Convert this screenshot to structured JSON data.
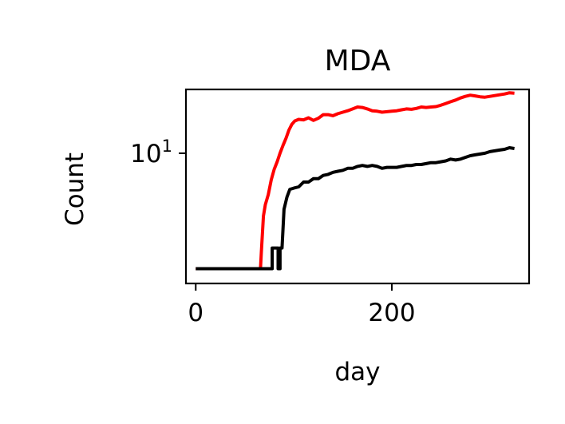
{
  "chart_data": {
    "type": "line",
    "title": "MDA",
    "xlabel": "day",
    "ylabel": "Count",
    "yscale": "log",
    "xlim": [
      -10,
      340
    ],
    "ylim": [
      2.0,
      22.0
    ],
    "x_ticks": [
      0,
      200
    ],
    "x_tick_labels": [
      "0",
      "200"
    ],
    "y_ticks": [
      10
    ],
    "y_tick_labels": [
      {
        "base": "10",
        "exp": "1"
      }
    ],
    "grid": false,
    "legend": "none",
    "series": [
      {
        "color": "#ff0000",
        "points": [
          [
            0,
            2.4
          ],
          [
            66,
            2.4
          ],
          [
            67,
            3.0
          ],
          [
            69,
            4.6
          ],
          [
            71,
            5.3
          ],
          [
            74,
            6.0
          ],
          [
            77,
            7.2
          ],
          [
            80,
            8.2
          ],
          [
            83,
            9.0
          ],
          [
            86,
            10.0
          ],
          [
            89,
            11.0
          ],
          [
            92,
            12.0
          ],
          [
            95,
            13.3
          ],
          [
            98,
            14.3
          ],
          [
            101,
            14.9
          ],
          [
            105,
            15.2
          ],
          [
            110,
            15.1
          ],
          [
            115,
            15.5
          ],
          [
            120,
            15.0
          ],
          [
            125,
            15.4
          ],
          [
            130,
            16.1
          ],
          [
            135,
            16.1
          ],
          [
            140,
            15.9
          ],
          [
            145,
            16.3
          ],
          [
            150,
            16.6
          ],
          [
            155,
            16.9
          ],
          [
            160,
            17.3
          ],
          [
            165,
            17.7
          ],
          [
            170,
            17.6
          ],
          [
            175,
            17.3
          ],
          [
            180,
            16.9
          ],
          [
            185,
            16.8
          ],
          [
            190,
            16.6
          ],
          [
            195,
            16.7
          ],
          [
            200,
            16.8
          ],
          [
            205,
            16.9
          ],
          [
            210,
            17.1
          ],
          [
            215,
            17.3
          ],
          [
            220,
            17.2
          ],
          [
            225,
            17.4
          ],
          [
            230,
            17.7
          ],
          [
            235,
            17.6
          ],
          [
            240,
            17.7
          ],
          [
            245,
            17.8
          ],
          [
            250,
            18.1
          ],
          [
            255,
            18.5
          ],
          [
            260,
            18.9
          ],
          [
            265,
            19.3
          ],
          [
            270,
            19.8
          ],
          [
            275,
            20.2
          ],
          [
            280,
            20.5
          ],
          [
            285,
            20.3
          ],
          [
            290,
            20.1
          ],
          [
            295,
            20.0
          ],
          [
            300,
            20.2
          ],
          [
            305,
            20.4
          ],
          [
            310,
            20.6
          ],
          [
            315,
            20.8
          ],
          [
            320,
            21.1
          ],
          [
            325,
            21.0
          ]
        ]
      },
      {
        "color": "#000000",
        "points": [
          [
            0,
            2.4
          ],
          [
            78,
            2.4
          ],
          [
            78,
            3.1
          ],
          [
            84,
            3.1
          ],
          [
            84,
            2.4
          ],
          [
            86,
            2.4
          ],
          [
            86,
            3.1
          ],
          [
            88,
            3.1
          ],
          [
            90,
            5.0
          ],
          [
            93,
            5.8
          ],
          [
            96,
            6.4
          ],
          [
            100,
            6.5
          ],
          [
            105,
            6.6
          ],
          [
            110,
            7.0
          ],
          [
            115,
            7.0
          ],
          [
            120,
            7.3
          ],
          [
            125,
            7.3
          ],
          [
            130,
            7.6
          ],
          [
            135,
            7.7
          ],
          [
            140,
            7.9
          ],
          [
            145,
            8.0
          ],
          [
            150,
            8.1
          ],
          [
            155,
            8.3
          ],
          [
            160,
            8.3
          ],
          [
            165,
            8.5
          ],
          [
            170,
            8.6
          ],
          [
            175,
            8.5
          ],
          [
            180,
            8.6
          ],
          [
            185,
            8.5
          ],
          [
            190,
            8.3
          ],
          [
            195,
            8.4
          ],
          [
            200,
            8.4
          ],
          [
            205,
            8.4
          ],
          [
            210,
            8.5
          ],
          [
            215,
            8.6
          ],
          [
            220,
            8.6
          ],
          [
            225,
            8.7
          ],
          [
            230,
            8.7
          ],
          [
            235,
            8.8
          ],
          [
            240,
            8.9
          ],
          [
            245,
            8.9
          ],
          [
            250,
            9.0
          ],
          [
            255,
            9.1
          ],
          [
            260,
            9.3
          ],
          [
            265,
            9.2
          ],
          [
            270,
            9.3
          ],
          [
            275,
            9.5
          ],
          [
            280,
            9.7
          ],
          [
            285,
            9.8
          ],
          [
            290,
            9.9
          ],
          [
            295,
            10.0
          ],
          [
            300,
            10.2
          ],
          [
            305,
            10.3
          ],
          [
            310,
            10.4
          ],
          [
            315,
            10.5
          ],
          [
            320,
            10.7
          ],
          [
            325,
            10.6
          ]
        ]
      }
    ]
  }
}
